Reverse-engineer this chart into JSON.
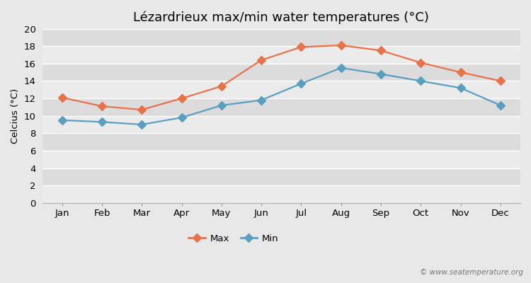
{
  "title": "Lézardrieux max/min water temperatures (°C)",
  "ylabel": "Celcius (°C)",
  "months": [
    "Jan",
    "Feb",
    "Mar",
    "Apr",
    "May",
    "Jun",
    "Jul",
    "Aug",
    "Sep",
    "Oct",
    "Nov",
    "Dec"
  ],
  "max_values": [
    12.1,
    11.1,
    10.7,
    12.0,
    13.4,
    16.4,
    17.9,
    18.1,
    17.5,
    16.1,
    15.0,
    14.0
  ],
  "min_values": [
    9.5,
    9.3,
    9.0,
    9.8,
    11.2,
    11.8,
    13.7,
    15.5,
    14.8,
    14.0,
    13.2,
    11.2
  ],
  "max_color": "#e8724a",
  "min_color": "#5b9fc0",
  "fig_bg_color": "#e8e8e8",
  "plot_bg_color": "#e8e8e8",
  "band_light": "#ebebeb",
  "band_dark": "#dcdcdc",
  "grid_color": "#ffffff",
  "ylim": [
    0,
    20
  ],
  "yticks": [
    0,
    2,
    4,
    6,
    8,
    10,
    12,
    14,
    16,
    18,
    20
  ],
  "watermark": "© www.seatemperature.org",
  "legend_max": "Max",
  "legend_min": "Min",
  "title_fontsize": 13,
  "label_fontsize": 9.5,
  "tick_fontsize": 9.5,
  "marker": "D",
  "linewidth": 1.6,
  "markersize": 6
}
